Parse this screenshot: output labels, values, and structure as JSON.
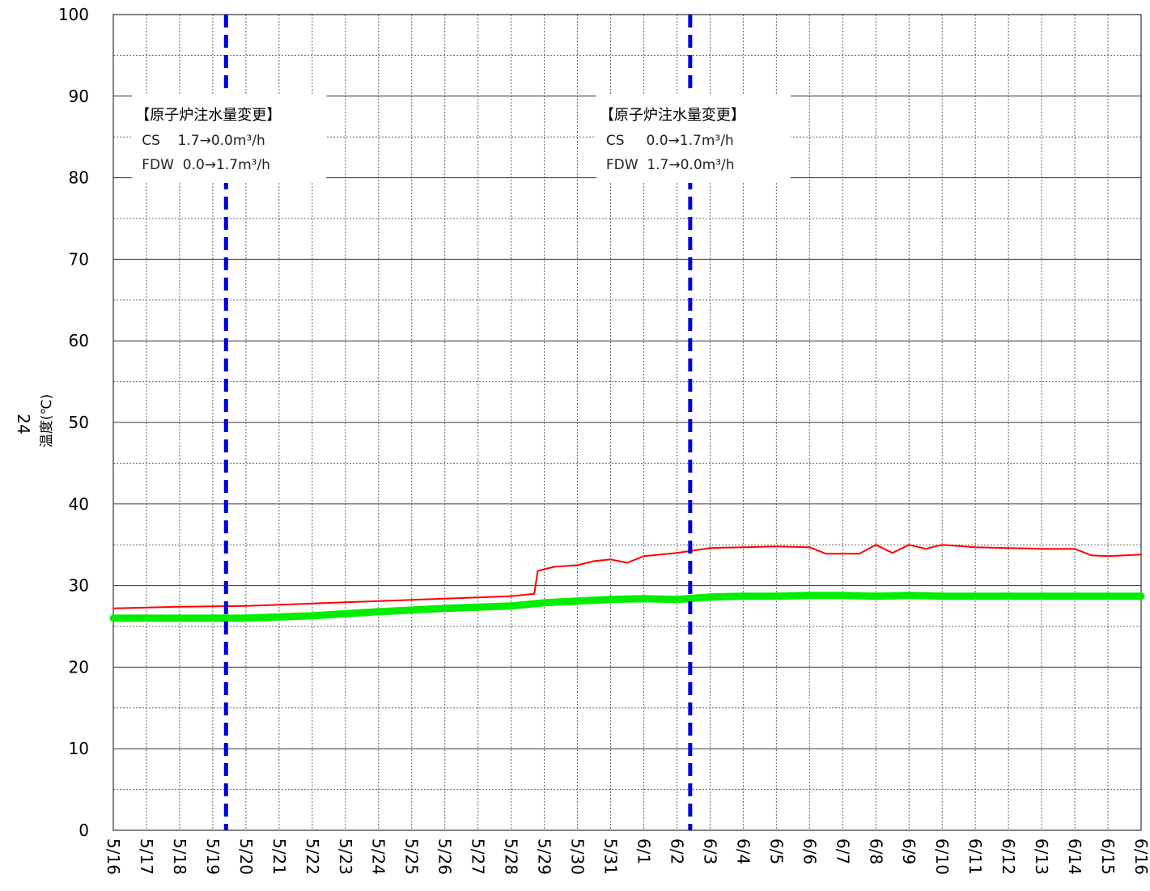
{
  "chart_data": {
    "type": "line",
    "ylabel": "温度(℃)",
    "ylabel_prefix": "24",
    "ylim": [
      0,
      100
    ],
    "y_ticks": [
      0,
      10,
      20,
      30,
      40,
      50,
      60,
      70,
      80,
      90,
      100
    ],
    "x_tick_labels": [
      "5/16",
      "5/17",
      "5/18",
      "5/19",
      "5/20",
      "5/21",
      "5/22",
      "5/23",
      "5/24",
      "5/25",
      "5/26",
      "5/27",
      "5/28",
      "5/29",
      "5/30",
      "5/31",
      "6/1",
      "6/2",
      "6/3",
      "6/4",
      "6/5",
      "6/6",
      "6/7",
      "6/8",
      "6/9",
      "6/10",
      "6/11",
      "6/12",
      "6/13",
      "6/14",
      "6/15",
      "6/16"
    ],
    "grid": true,
    "colors": {
      "red_series": "#ff0000",
      "green_series": "#00ee00",
      "event_line": "#0000dd"
    },
    "series": [
      {
        "color": "red",
        "x": [
          "5/16",
          "5/18",
          "5/20",
          "5/22",
          "5/24",
          "5/26",
          "5/28",
          "5/28.7",
          "5/28.8",
          "5/29.3",
          "5/30",
          "5/30.5",
          "5/31",
          "5/31.5",
          "6/1",
          "6/2",
          "6/3",
          "6/4",
          "6/5",
          "6/6",
          "6/6.5",
          "6/7.5",
          "6/8",
          "6/8.5",
          "6/9",
          "6/9.5",
          "6/10",
          "6/11",
          "6/12",
          "6/13",
          "6/14",
          "6/14.5",
          "6/15",
          "6/16"
        ],
        "values": [
          27.2,
          27.4,
          27.5,
          27.8,
          28.1,
          28.4,
          28.7,
          29.0,
          31.8,
          32.3,
          32.5,
          33.0,
          33.2,
          32.8,
          33.6,
          34.0,
          34.6,
          34.7,
          34.8,
          34.7,
          33.9,
          33.9,
          35.0,
          34.0,
          35.0,
          34.5,
          35.0,
          34.7,
          34.6,
          34.5,
          34.5,
          33.7,
          33.6,
          33.8
        ]
      },
      {
        "color": "green",
        "x": [
          "5/16",
          "5/18",
          "5/20",
          "5/22",
          "5/24",
          "5/26",
          "5/28",
          "5/29",
          "5/30",
          "5/31",
          "6/1",
          "6/2",
          "6/3",
          "6/4",
          "6/5",
          "6/6",
          "6/7",
          "6/8",
          "6/9",
          "6/10",
          "6/11",
          "6/12",
          "6/13",
          "6/14",
          "6/15",
          "6/16"
        ],
        "values": [
          26.0,
          26.0,
          26.0,
          26.3,
          26.8,
          27.2,
          27.5,
          27.9,
          28.1,
          28.3,
          28.4,
          28.3,
          28.6,
          28.7,
          28.7,
          28.8,
          28.8,
          28.7,
          28.8,
          28.7,
          28.7,
          28.7,
          28.7,
          28.7,
          28.7,
          28.7
        ]
      }
    ],
    "events": [
      {
        "x": "5/19.4",
        "title": "【原子炉注水量変更】",
        "lines": [
          "CS    1.7→0.0m³/h",
          "FDW  0.0→1.7m³/h"
        ]
      },
      {
        "x": "6/2.4",
        "title": "【原子炉注水量変更】",
        "lines": [
          "CS     0.0→1.7m³/h",
          "FDW  1.7→0.0m³/h"
        ]
      }
    ]
  }
}
